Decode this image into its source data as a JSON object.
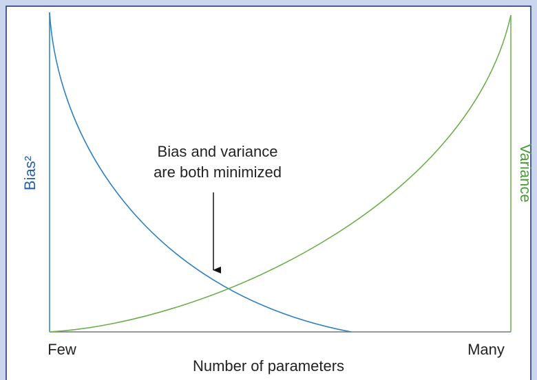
{
  "title_lines": [
    "Bias and variance",
    "are both minimized"
  ],
  "x_axis": {
    "left": "Few",
    "right": "Many",
    "label": "Number of parameters"
  },
  "left_axis_label": "Bias²",
  "right_axis_label": "Variance"
}
